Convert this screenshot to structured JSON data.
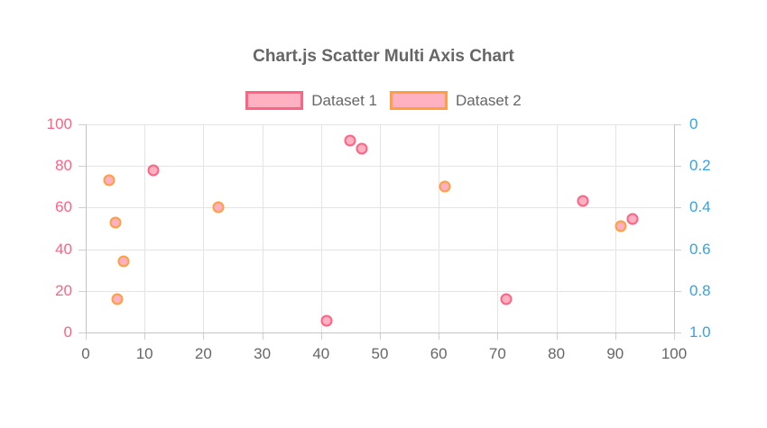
{
  "title": "Chart.js Scatter Multi Axis Chart",
  "colors": {
    "pink": "#ff6384",
    "orange": "#ff9f40",
    "blue": "#36a2eb",
    "text_gray": "#666666",
    "grid": "#e4e4e4",
    "axis_border": "#c4c4c4",
    "point_fill": "#ffb1c1"
  },
  "legend": {
    "items": [
      {
        "label": "Dataset 1",
        "border": "#ff6384",
        "fill": "#ffb1c1"
      },
      {
        "label": "Dataset 2",
        "border": "#ff9f40",
        "fill": "#ffb1c1"
      }
    ]
  },
  "chart_data": {
    "type": "scatter",
    "title": "Chart.js Scatter Multi Axis Chart",
    "grid": true,
    "legend_position": "top",
    "axes": {
      "x": {
        "position": "bottom",
        "min": 0,
        "max": 100,
        "tick_labels": [
          "0",
          "10",
          "20",
          "30",
          "40",
          "50",
          "60",
          "70",
          "80",
          "90",
          "100"
        ],
        "tick_values": [
          0,
          10,
          20,
          30,
          40,
          50,
          60,
          70,
          80,
          90,
          100
        ],
        "color": "#666666"
      },
      "y": {
        "position": "left",
        "min": 0,
        "max": 100,
        "tick_labels": [
          "0",
          "20",
          "40",
          "60",
          "80",
          "100"
        ],
        "tick_values": [
          0,
          20,
          40,
          60,
          80,
          100
        ],
        "color": "#ff6384",
        "reversed": false
      },
      "y2": {
        "position": "right",
        "min": 0,
        "max": 1,
        "tick_labels": [
          "0",
          "0.2",
          "0.4",
          "0.6",
          "0.8",
          "1.0"
        ],
        "tick_values": [
          0,
          0.2,
          0.4,
          0.6,
          0.8,
          1.0
        ],
        "color": "#36a2eb",
        "reversed": true
      }
    },
    "series": [
      {
        "name": "Dataset 1",
        "yAxis": "y",
        "borderColor": "#ff6384",
        "backgroundColor": "#ffb1c1",
        "points": [
          {
            "x": 11.5,
            "y": 78
          },
          {
            "x": 41,
            "y": 5.5
          },
          {
            "x": 45,
            "y": 92
          },
          {
            "x": 47,
            "y": 88.5
          },
          {
            "x": 71.5,
            "y": 16
          },
          {
            "x": 84.5,
            "y": 63
          },
          {
            "x": 93,
            "y": 54.5
          }
        ]
      },
      {
        "name": "Dataset 2",
        "yAxis": "y2",
        "borderColor": "#ff9f40",
        "backgroundColor": "#ffb1c1",
        "points": [
          {
            "x": 4,
            "y": 0.27
          },
          {
            "x": 5,
            "y": 0.47
          },
          {
            "x": 5.4,
            "y": 0.84
          },
          {
            "x": 6.4,
            "y": 0.66
          },
          {
            "x": 22.5,
            "y": 0.4
          },
          {
            "x": 61,
            "y": 0.3
          },
          {
            "x": 91,
            "y": 0.49
          }
        ]
      }
    ]
  }
}
